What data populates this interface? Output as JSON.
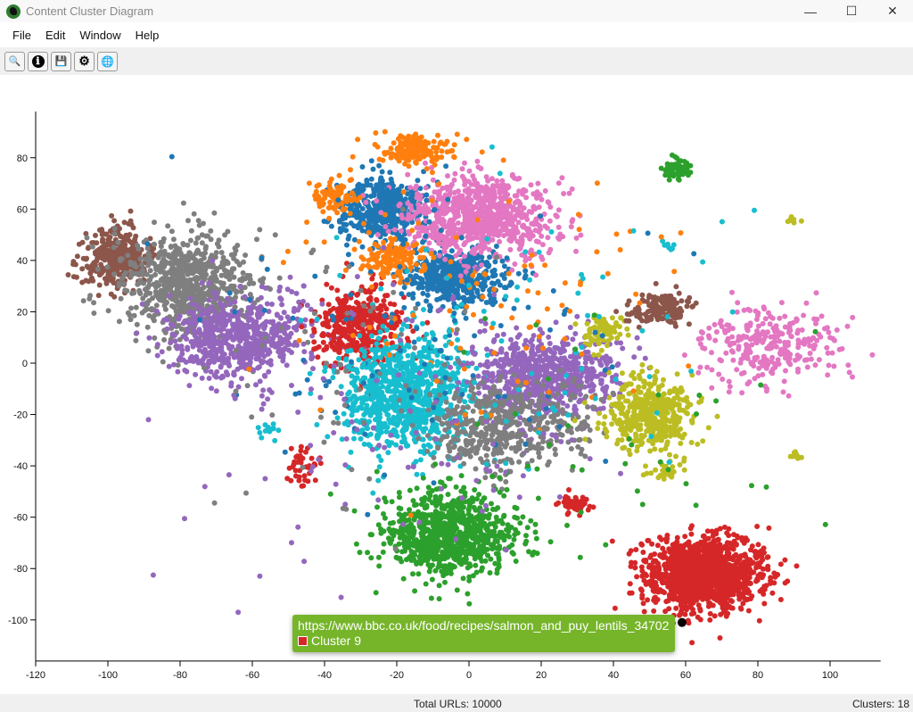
{
  "window": {
    "title": "Content Cluster Diagram",
    "minimize": "—",
    "maximize": "☐",
    "close": "✕"
  },
  "menu": [
    "File",
    "Edit",
    "Window",
    "Help"
  ],
  "toolbar": [
    {
      "name": "search",
      "glyph": "🔍"
    },
    {
      "name": "info",
      "glyph": "ℹ"
    },
    {
      "name": "save",
      "glyph": "💾"
    },
    {
      "name": "settings",
      "glyph": "⚙"
    },
    {
      "name": "globe",
      "glyph": "🌐"
    }
  ],
  "tooltip": {
    "url": "https://www.bbc.co.uk/food/recipes/salmon_and_puy_lentils_34702",
    "cluster": "Cluster 9",
    "color": "#d62728"
  },
  "status": {
    "total": "Total URLs: 10000",
    "clusters": "Clusters: 18"
  },
  "chart_data": {
    "type": "scatter",
    "title": "",
    "xlabel": "",
    "ylabel": "",
    "xlim": [
      -120,
      114
    ],
    "ylim": [
      -116,
      98
    ],
    "x_ticks": [
      -120,
      -100,
      -80,
      -60,
      -40,
      -20,
      0,
      20,
      40,
      60,
      80,
      100
    ],
    "y_ticks": [
      -100,
      -80,
      -60,
      -40,
      -20,
      0,
      20,
      40,
      60,
      80
    ],
    "grid": false,
    "highlighted_point": {
      "x": 59,
      "y": -101,
      "color": "#000000"
    },
    "clusters": [
      {
        "color": "#8c564b",
        "cx": -98,
        "cy": 41,
        "sx": 5,
        "sy": 6,
        "n": 350
      },
      {
        "color": "#7f7f7f",
        "cx": -78,
        "cy": 30,
        "sx": 9,
        "sy": 11,
        "n": 750
      },
      {
        "color": "#9467bd",
        "cx": -63,
        "cy": 10,
        "sx": 10,
        "sy": 8,
        "n": 650
      },
      {
        "color": "#d62728",
        "cx": -31,
        "cy": 14,
        "sx": 6,
        "sy": 8,
        "n": 400
      },
      {
        "color": "#17becf",
        "cx": -17,
        "cy": -13,
        "sx": 9,
        "sy": 11,
        "n": 900
      },
      {
        "color": "#1f77b4",
        "cx": -24,
        "cy": 60,
        "sx": 6,
        "sy": 6,
        "n": 450
      },
      {
        "color": "#1f77b4",
        "cx": -4,
        "cy": 33,
        "sx": 7,
        "sy": 5,
        "n": 450
      },
      {
        "color": "#e377c2",
        "cx": 3,
        "cy": 57,
        "sx": 10,
        "sy": 8,
        "n": 800
      },
      {
        "color": "#ff7f0e",
        "cx": -14,
        "cy": 83,
        "sx": 5,
        "sy": 3,
        "n": 180
      },
      {
        "color": "#ff7f0e",
        "cx": -37,
        "cy": 65,
        "sx": 3,
        "sy": 3,
        "n": 90
      },
      {
        "color": "#ff7f0e",
        "cx": -21,
        "cy": 41,
        "sx": 4,
        "sy": 4,
        "n": 150
      },
      {
        "color": "#9467bd",
        "cx": 21,
        "cy": -5,
        "sx": 10,
        "sy": 8,
        "n": 700
      },
      {
        "color": "#7f7f7f",
        "cx": 11,
        "cy": -24,
        "sx": 11,
        "sy": 9,
        "n": 500
      },
      {
        "color": "#2ca02c",
        "cx": -5,
        "cy": -66,
        "sx": 9,
        "sy": 8,
        "n": 850
      },
      {
        "color": "#d62728",
        "cx": 65,
        "cy": -82,
        "sx": 8,
        "sy": 7,
        "n": 1300
      },
      {
        "color": "#bcbd22",
        "cx": 50,
        "cy": -20,
        "sx": 6,
        "sy": 7,
        "n": 450
      },
      {
        "color": "#bcbd22",
        "cx": 37,
        "cy": 13,
        "sx": 3,
        "sy": 3,
        "n": 80
      },
      {
        "color": "#8c564b",
        "cx": 53,
        "cy": 21,
        "sx": 4,
        "sy": 3,
        "n": 150
      },
      {
        "color": "#e377c2",
        "cx": 84,
        "cy": 7,
        "sx": 10,
        "sy": 8,
        "n": 280
      },
      {
        "color": "#2ca02c",
        "cx": 58,
        "cy": 76,
        "sx": 2,
        "sy": 2,
        "n": 60
      },
      {
        "color": "#d62728",
        "cx": 29,
        "cy": -55,
        "sx": 2,
        "sy": 2,
        "n": 50
      },
      {
        "color": "#d62728",
        "cx": -46,
        "cy": -40,
        "sx": 2,
        "sy": 4,
        "n": 40
      },
      {
        "color": "#bcbd22",
        "cx": 54,
        "cy": -42,
        "sx": 2,
        "sy": 2,
        "n": 25
      },
      {
        "color": "#bcbd22",
        "cx": 89,
        "cy": 56,
        "sx": 1,
        "sy": 1,
        "n": 8
      },
      {
        "color": "#bcbd22",
        "cx": 90,
        "cy": -36,
        "sx": 1,
        "sy": 1,
        "n": 8
      },
      {
        "color": "#17becf",
        "cx": 55,
        "cy": 46,
        "sx": 1,
        "sy": 1,
        "n": 8
      },
      {
        "color": "#17becf",
        "cx": -55,
        "cy": -27,
        "sx": 2,
        "sy": 2,
        "n": 12
      },
      {
        "color": "#1f77b4",
        "cx": -10,
        "cy": 10,
        "sx": 30,
        "sy": 30,
        "n": 120
      },
      {
        "color": "#ff7f0e",
        "cx": 5,
        "cy": 30,
        "sx": 30,
        "sy": 25,
        "n": 100
      },
      {
        "color": "#9467bd",
        "cx": -20,
        "cy": -20,
        "sx": 30,
        "sy": 30,
        "n": 120
      },
      {
        "color": "#17becf",
        "cx": 10,
        "cy": 10,
        "sx": 30,
        "sy": 30,
        "n": 80
      },
      {
        "color": "#2ca02c",
        "cx": 30,
        "cy": -30,
        "sx": 25,
        "sy": 25,
        "n": 40
      },
      {
        "color": "#7f7f7f",
        "cx": -40,
        "cy": 0,
        "sx": 25,
        "sy": 30,
        "n": 60
      }
    ]
  }
}
